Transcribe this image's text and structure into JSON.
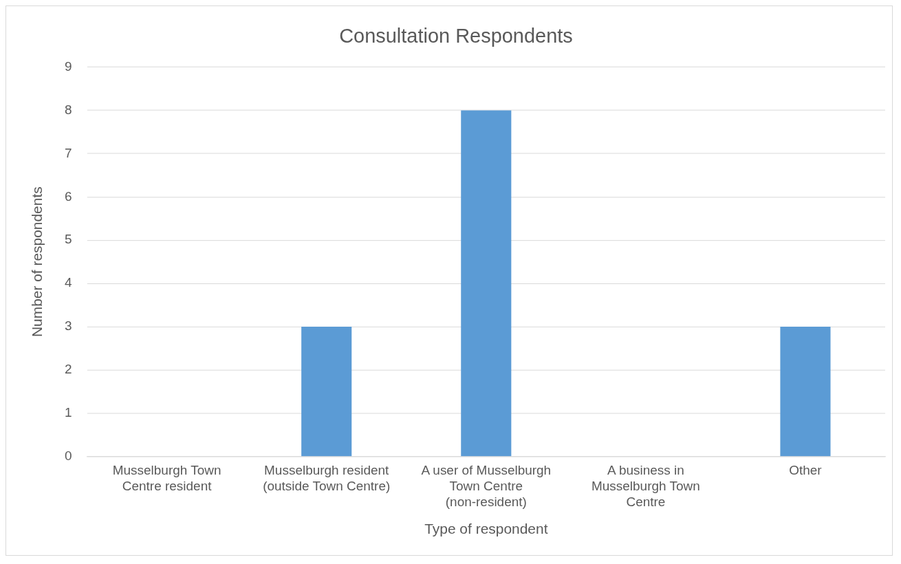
{
  "chart_data": {
    "type": "bar",
    "title": "Consultation Respondents",
    "xlabel": "Type of respondent",
    "ylabel": "Number of respondents",
    "categories": [
      "Musselburgh Town Centre resident",
      "Musselburgh resident (outside Town Centre)",
      "A user of Musselburgh Town Centre (non-resident)",
      "A business in Musselburgh Town Centre",
      "Other"
    ],
    "values": [
      0,
      3,
      8,
      0,
      3
    ],
    "color": "#5b9bd5",
    "ylim": [
      0,
      9
    ],
    "yticks": [
      0,
      1,
      2,
      3,
      4,
      5,
      6,
      7,
      8,
      9
    ],
    "grid": "y",
    "legend": false
  }
}
